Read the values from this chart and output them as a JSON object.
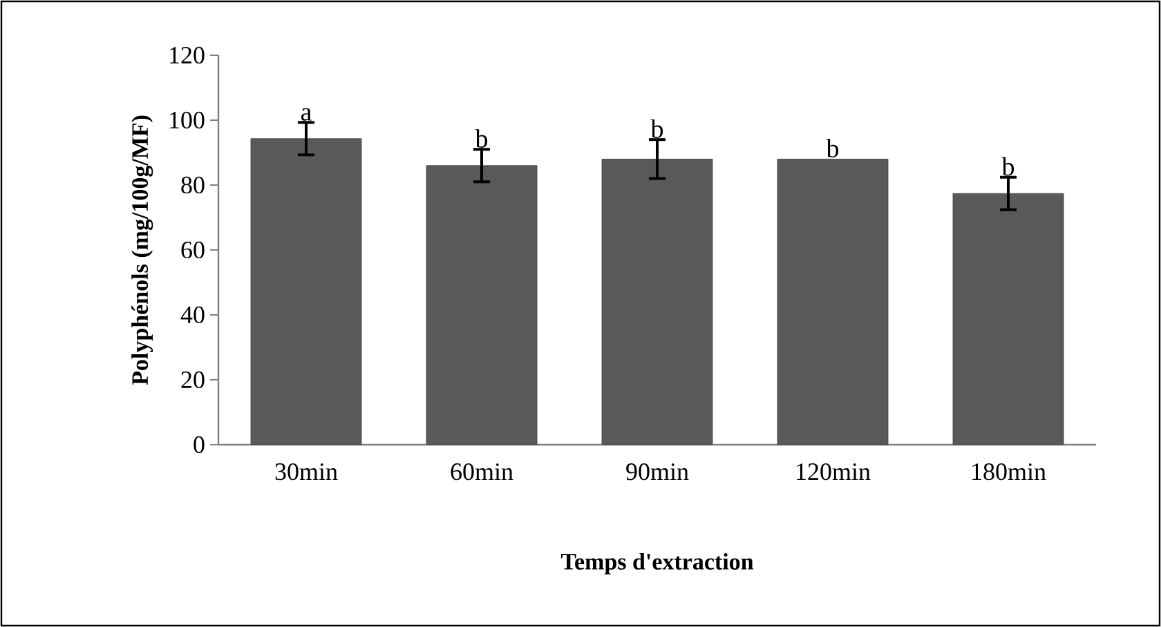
{
  "chart_data": {
    "type": "bar",
    "ylabel": "Polyphénols (mg/100g/MF)",
    "xlabel": "Temps d'extraction",
    "categories": [
      "30min",
      "60min",
      "90min",
      "120min",
      "180min"
    ],
    "values": [
      94.3,
      86,
      88,
      88,
      77.4
    ],
    "errors": [
      5,
      5,
      6,
      null,
      5
    ],
    "color": "#595959",
    "ylim": [
      0,
      120
    ],
    "yticks": [
      0,
      20,
      40,
      60,
      80,
      100,
      120
    ],
    "annotations": [
      {
        "text": "a",
        "x": "30min",
        "y": 99.3
      },
      {
        "text": "b",
        "x": "60min",
        "y": 91
      },
      {
        "text": "b",
        "x": "90min",
        "y": 94
      },
      {
        "text": "b",
        "x": "120min",
        "y": 88
      },
      {
        "text": "b",
        "x": "180min",
        "y": 82.4
      }
    ]
  }
}
